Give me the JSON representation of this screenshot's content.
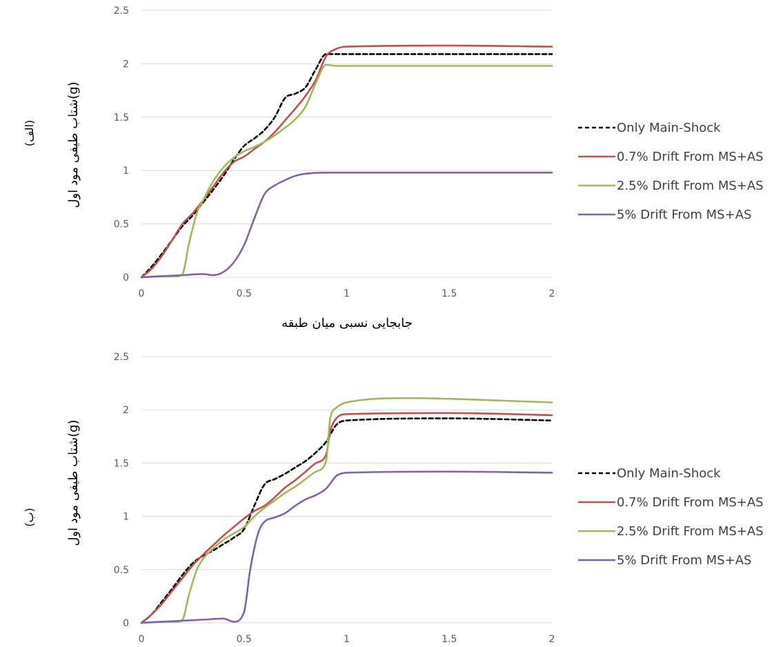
{
  "chart_data": [
    {
      "type": "line",
      "panel_label": "(الف)",
      "xlabel": "جابجایی نسبی میان طبقه",
      "ylabel": "شتاب طیفی مود اول(g)",
      "x_ticks": [
        "0",
        "0.5",
        "1",
        "1.5",
        "2"
      ],
      "y_ticks": [
        "0",
        "0.5",
        "1",
        "1.5",
        "2",
        "2.5"
      ],
      "xlim": [
        0,
        2
      ],
      "ylim": [
        0,
        2.5
      ],
      "grid": "horizontal",
      "legend_position": "right",
      "series": [
        {
          "name": "Only Main-Shock",
          "color": "#000000",
          "dash": true,
          "x": [
            0,
            0.05,
            0.1,
            0.15,
            0.2,
            0.25,
            0.3,
            0.35,
            0.4,
            0.45,
            0.5,
            0.55,
            0.6,
            0.65,
            0.7,
            0.75,
            0.8,
            0.85,
            0.9,
            1.0,
            1.5,
            2.0
          ],
          "y": [
            0,
            0.1,
            0.22,
            0.35,
            0.48,
            0.58,
            0.7,
            0.82,
            0.95,
            1.1,
            1.23,
            1.3,
            1.38,
            1.5,
            1.68,
            1.72,
            1.78,
            1.95,
            2.09,
            2.09,
            2.09,
            2.09
          ]
        },
        {
          "name": "0.7% Drift From MS+AS",
          "color": "#C0504D",
          "dash": false,
          "x": [
            0,
            0.05,
            0.1,
            0.15,
            0.2,
            0.25,
            0.3,
            0.35,
            0.4,
            0.45,
            0.5,
            0.55,
            0.6,
            0.65,
            0.7,
            0.75,
            0.8,
            0.85,
            0.9,
            0.95,
            1.0,
            1.5,
            2.0
          ],
          "y": [
            0,
            0.08,
            0.2,
            0.35,
            0.5,
            0.6,
            0.72,
            0.85,
            0.98,
            1.08,
            1.13,
            1.2,
            1.27,
            1.36,
            1.47,
            1.58,
            1.7,
            1.85,
            2.07,
            2.14,
            2.16,
            2.17,
            2.16
          ]
        },
        {
          "name": "2.5% Drift From MS+AS",
          "color": "#9BBB59",
          "dash": false,
          "x": [
            0,
            0.1,
            0.17,
            0.2,
            0.23,
            0.27,
            0.3,
            0.35,
            0.4,
            0.45,
            0.5,
            0.55,
            0.6,
            0.65,
            0.7,
            0.75,
            0.8,
            0.85,
            0.9,
            0.95,
            1.0,
            1.5,
            2.0
          ],
          "y": [
            0,
            0.01,
            0.01,
            0.03,
            0.3,
            0.6,
            0.72,
            0.9,
            1.03,
            1.12,
            1.18,
            1.22,
            1.27,
            1.33,
            1.4,
            1.48,
            1.6,
            1.82,
            1.99,
            1.98,
            1.98,
            1.98,
            1.98
          ]
        },
        {
          "name": "5% Drift From MS+AS",
          "color": "#8064A2",
          "dash": false,
          "x": [
            0,
            0.1,
            0.2,
            0.3,
            0.35,
            0.4,
            0.45,
            0.5,
            0.55,
            0.6,
            0.65,
            0.7,
            0.75,
            0.8,
            0.9,
            1.0,
            1.5,
            2.0
          ],
          "y": [
            0,
            0.01,
            0.02,
            0.03,
            0.02,
            0.05,
            0.14,
            0.3,
            0.55,
            0.78,
            0.86,
            0.91,
            0.95,
            0.97,
            0.98,
            0.98,
            0.98,
            0.98
          ]
        }
      ]
    },
    {
      "type": "line",
      "panel_label": "(ب)",
      "xlabel": "",
      "ylabel": "شتاب طیفی مود اول(g)",
      "x_ticks": [
        "0",
        "0.5",
        "1",
        "1.5",
        "2"
      ],
      "y_ticks": [
        "0",
        "0.5",
        "1",
        "1.5",
        "2",
        "2.5"
      ],
      "xlim": [
        0,
        2
      ],
      "ylim": [
        0,
        2.5
      ],
      "grid": "horizontal",
      "legend_position": "right",
      "series": [
        {
          "name": "Only Main-Shock",
          "color": "#000000",
          "dash": true,
          "x": [
            0,
            0.05,
            0.1,
            0.15,
            0.2,
            0.25,
            0.3,
            0.35,
            0.4,
            0.45,
            0.5,
            0.55,
            0.6,
            0.65,
            0.7,
            0.75,
            0.8,
            0.85,
            0.9,
            0.95,
            1.0,
            1.5,
            2.0
          ],
          "y": [
            0,
            0.08,
            0.2,
            0.32,
            0.45,
            0.56,
            0.63,
            0.68,
            0.74,
            0.8,
            0.88,
            1.1,
            1.3,
            1.35,
            1.4,
            1.46,
            1.52,
            1.6,
            1.7,
            1.86,
            1.9,
            1.92,
            1.9
          ]
        },
        {
          "name": "0.7% Drift From MS+AS",
          "color": "#C0504D",
          "dash": false,
          "x": [
            0,
            0.05,
            0.1,
            0.15,
            0.2,
            0.25,
            0.3,
            0.35,
            0.4,
            0.45,
            0.5,
            0.55,
            0.6,
            0.65,
            0.7,
            0.75,
            0.8,
            0.85,
            0.9,
            0.92,
            0.95,
            1.0,
            1.5,
            2.0
          ],
          "y": [
            0,
            0.08,
            0.18,
            0.3,
            0.42,
            0.54,
            0.64,
            0.73,
            0.82,
            0.9,
            0.98,
            1.05,
            1.1,
            1.18,
            1.27,
            1.34,
            1.42,
            1.5,
            1.58,
            1.8,
            1.92,
            1.96,
            1.97,
            1.95
          ]
        },
        {
          "name": "2.5% Drift From MS+AS",
          "color": "#9BBB59",
          "dash": false,
          "x": [
            0,
            0.1,
            0.17,
            0.2,
            0.23,
            0.27,
            0.3,
            0.35,
            0.4,
            0.45,
            0.5,
            0.55,
            0.6,
            0.65,
            0.7,
            0.75,
            0.8,
            0.85,
            0.9,
            0.92,
            0.95,
            1.0,
            1.3,
            2.0
          ],
          "y": [
            0,
            0.01,
            0.01,
            0.03,
            0.25,
            0.5,
            0.6,
            0.7,
            0.78,
            0.84,
            0.9,
            1.0,
            1.08,
            1.15,
            1.22,
            1.28,
            1.35,
            1.42,
            1.52,
            1.92,
            2.02,
            2.07,
            2.11,
            2.07
          ]
        },
        {
          "name": "5% Drift From MS+AS",
          "color": "#8064A2",
          "dash": false,
          "x": [
            0,
            0.1,
            0.2,
            0.3,
            0.4,
            0.45,
            0.5,
            0.53,
            0.57,
            0.6,
            0.65,
            0.7,
            0.75,
            0.8,
            0.85,
            0.9,
            0.95,
            1.0,
            1.5,
            2.0
          ],
          "y": [
            0,
            0.01,
            0.02,
            0.03,
            0.04,
            0.01,
            0.1,
            0.5,
            0.85,
            0.95,
            0.99,
            1.03,
            1.1,
            1.16,
            1.2,
            1.26,
            1.38,
            1.41,
            1.42,
            1.41
          ]
        }
      ]
    }
  ]
}
